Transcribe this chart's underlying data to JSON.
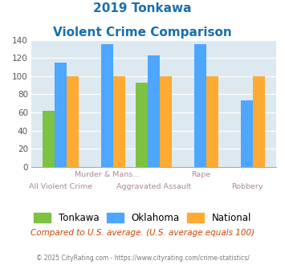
{
  "title_line1": "2019 Tonkawa",
  "title_line2": "Violent Crime Comparison",
  "tonkawa": [
    62,
    0,
    93,
    0,
    0
  ],
  "oklahoma": [
    115,
    135,
    123,
    135,
    73
  ],
  "national": [
    100,
    100,
    100,
    100,
    100
  ],
  "color_tonkawa": "#7dc242",
  "color_oklahoma": "#4da6ff",
  "color_national": "#ffaa33",
  "ylim": [
    0,
    140
  ],
  "yticks": [
    0,
    20,
    40,
    60,
    80,
    100,
    120,
    140
  ],
  "bg_color": "#dce9f0",
  "top_labels": [
    "",
    "Murder & Mans...",
    "",
    "Rape",
    ""
  ],
  "bottom_labels": [
    "All Violent Crime",
    "",
    "Aggravated Assault",
    "",
    "Robbery"
  ],
  "subtitle_note": "Compared to U.S. average. (U.S. average equals 100)",
  "footer": "© 2025 CityRating.com - https://www.cityrating.com/crime-statistics/",
  "title_color": "#1a6fad",
  "note_color": "#cc4400",
  "footer_color": "#7a7a7a",
  "label_color": "#aa8899"
}
